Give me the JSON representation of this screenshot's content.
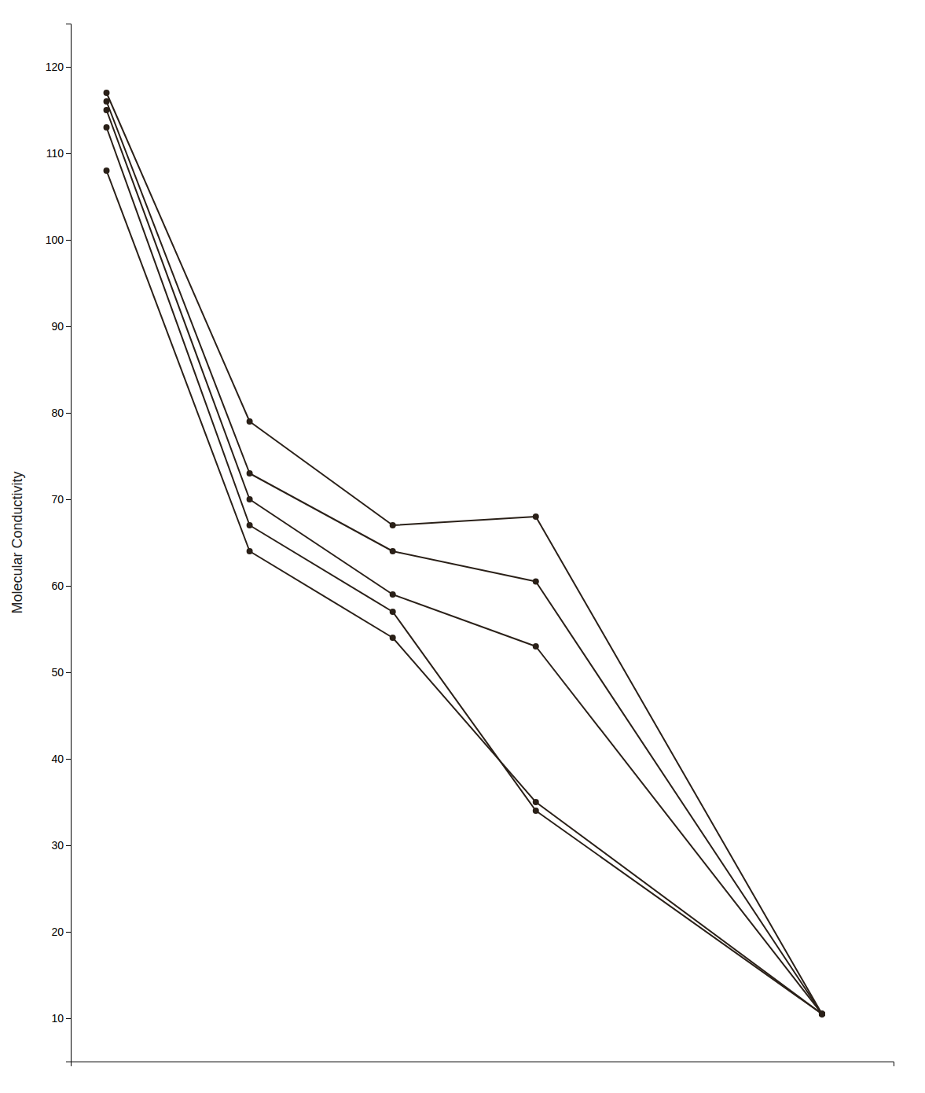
{
  "chart_data": {
    "type": "line",
    "ylabel": "Molecular Conductivity",
    "x": [
      0,
      20,
      40,
      60,
      100
    ],
    "xlim": [
      -5,
      110
    ],
    "ylim": [
      5,
      125
    ],
    "yticks": [
      10,
      20,
      30,
      40,
      50,
      60,
      70,
      80,
      90,
      100,
      110,
      120
    ],
    "color": "#2a2018",
    "marker": "circle",
    "grid": false,
    "tick_labels": "y",
    "series": [
      {
        "values": [
          117,
          79,
          67,
          68,
          10.5
        ]
      },
      {
        "values": [
          116,
          73,
          64,
          60.5,
          10.5
        ]
      },
      {
        "values": [
          115,
          70,
          59,
          53,
          10.5
        ]
      },
      {
        "values": [
          113,
          67,
          57,
          34,
          10.5
        ]
      },
      {
        "values": [
          108,
          64,
          54,
          35,
          10.5
        ]
      }
    ]
  }
}
